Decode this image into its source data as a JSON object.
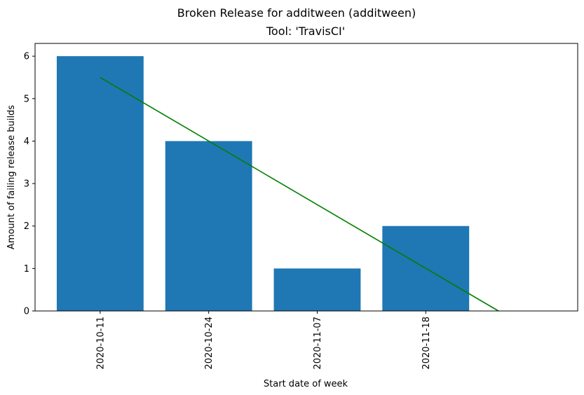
{
  "figure": {
    "suptitle": "Broken Release for additween (additween)"
  },
  "chart_data": {
    "type": "bar",
    "title": "Tool: 'TravisCI'",
    "xlabel": "Start date of week",
    "ylabel": "Amount of failing release builds",
    "categories": [
      "2020-10-11",
      "2020-10-24",
      "2020-11-07",
      "2020-11-18"
    ],
    "values": [
      6,
      4,
      1,
      2
    ],
    "ylim": [
      0,
      6.3
    ],
    "yticks": [
      0,
      1,
      2,
      3,
      4,
      5,
      6
    ],
    "bar_color": "#1f77b4",
    "trend_line": {
      "color": "#008000",
      "start": {
        "x": "2020-10-11",
        "y": 5.5
      },
      "end_y": 0
    },
    "grid": false,
    "legend": "none"
  }
}
